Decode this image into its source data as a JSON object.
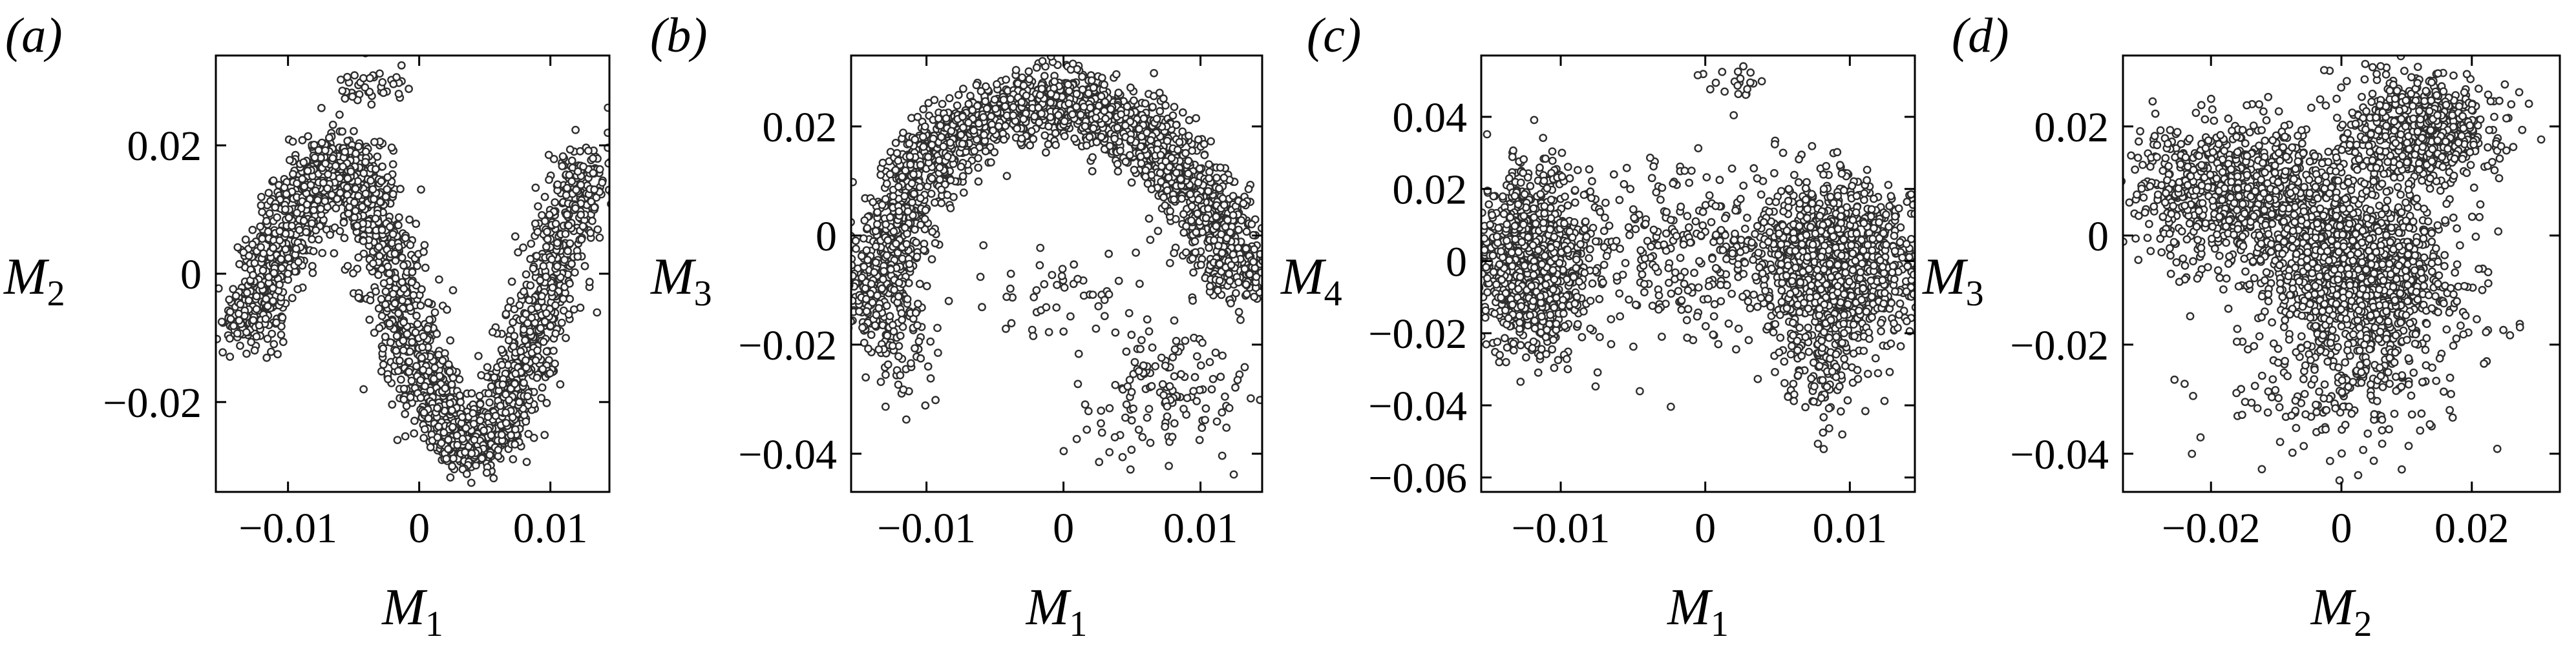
{
  "chart_data": [
    {
      "type": "scatter",
      "panel_label": "(a)",
      "x_axis": {
        "symbol": "M",
        "subscript": "1",
        "lim": [
          -0.0155,
          0.0145
        ],
        "ticks": [
          -0.01,
          0,
          0.01
        ],
        "tick_labels": [
          "−0.01",
          "0",
          "0.01"
        ]
      },
      "y_axis": {
        "symbol": "M",
        "subscript": "2",
        "lim": [
          -0.034,
          0.034
        ],
        "ticks": [
          -0.02,
          0,
          0.02
        ],
        "tick_labels": [
          "−0.02",
          "0",
          "0.02"
        ]
      },
      "grid": false,
      "point_style": {
        "marker": "open circle",
        "fill": "#ffffff",
        "edge": "#2e2e2e"
      },
      "structure": {
        "description_of_distribution": "S-shaped curve",
        "curve_x": [
          -0.0135,
          -0.012,
          -0.0105,
          -0.009,
          -0.0075,
          -0.006,
          -0.0045,
          -0.003,
          -0.0015,
          0,
          0.0015,
          0.003,
          0.0045,
          0.006,
          0.0075,
          0.009,
          0.0105,
          0.012,
          0.0128
        ],
        "curve_y": [
          -0.009,
          -0.003,
          0.004,
          0.011,
          0.016,
          0.018,
          0.014,
          0.006,
          -0.004,
          -0.014,
          -0.021,
          -0.026,
          -0.027,
          -0.024,
          -0.017,
          -0.008,
          0.002,
          0.012,
          0.018
        ],
        "spread": 0.004,
        "n_points": 2600,
        "extra_clusters": [
          {
            "cx": -0.004,
            "cy": 0.029,
            "sx": 0.0015,
            "sy": 0.0015,
            "n": 40
          }
        ]
      }
    },
    {
      "type": "scatter",
      "panel_label": "(b)",
      "x_axis": {
        "symbol": "M",
        "subscript": "1",
        "lim": [
          -0.0155,
          0.0145
        ],
        "ticks": [
          -0.01,
          0,
          0.01
        ],
        "tick_labels": [
          "−0.01",
          "0",
          "0.01"
        ]
      },
      "y_axis": {
        "symbol": "M",
        "subscript": "3",
        "lim": [
          -0.047,
          0.033
        ],
        "ticks": [
          -0.04,
          -0.02,
          0,
          0.02
        ],
        "tick_labels": [
          "−0.04",
          "−0.02",
          "0",
          "0.02"
        ]
      },
      "grid": false,
      "point_style": {
        "marker": "open circle",
        "fill": "#ffffff",
        "edge": "#2e2e2e"
      },
      "structure": {
        "description_of_distribution": "inverted-U arch",
        "curve_x": [
          -0.014,
          -0.0133,
          -0.012,
          -0.01,
          -0.0075,
          -0.005,
          -0.0025,
          0,
          0.0025,
          0.005,
          0.0075,
          0.01,
          0.0118,
          0.013
        ],
        "curve_y": [
          -0.015,
          -0.006,
          0.004,
          0.013,
          0.019,
          0.022,
          0.024,
          0.025,
          0.023,
          0.02,
          0.015,
          0.007,
          -0.001,
          -0.009
        ],
        "spread": 0.0045,
        "n_points": 2500,
        "extra_clusters": [
          {
            "cx": -0.012,
            "cy": -0.022,
            "sx": 0.0015,
            "sy": 0.005,
            "n": 60
          },
          {
            "cx": 0.007,
            "cy": -0.028,
            "sx": 0.003,
            "sy": 0.006,
            "n": 140
          },
          {
            "cx": 0.0,
            "cy": -0.01,
            "sx": 0.004,
            "sy": 0.004,
            "n": 50
          }
        ]
      }
    },
    {
      "type": "scatter",
      "panel_label": "(c)",
      "x_axis": {
        "symbol": "M",
        "subscript": "1",
        "lim": [
          -0.0155,
          0.0145
        ],
        "ticks": [
          -0.01,
          0,
          0.01
        ],
        "tick_labels": [
          "−0.01",
          "0",
          "0.01"
        ]
      },
      "y_axis": {
        "symbol": "M",
        "subscript": "4",
        "lim": [
          -0.064,
          0.057
        ],
        "ticks": [
          -0.06,
          -0.04,
          -0.02,
          0,
          0.02,
          0.04
        ],
        "tick_labels": [
          "−0.06",
          "−0.04",
          "−0.02",
          "0",
          "0.02",
          "0.04"
        ]
      },
      "grid": false,
      "point_style": {
        "marker": "open circle",
        "fill": "#ffffff",
        "edge": "#2e2e2e"
      },
      "structure": {
        "description_of_distribution": "two dense side clusters joined by sparse bridge",
        "clusters": [
          {
            "cx": -0.012,
            "cy": 0.0,
            "sx": 0.0018,
            "sy": 0.012,
            "n": 1000
          },
          {
            "cx": 0.009,
            "cy": 0.0,
            "sx": 0.0028,
            "sy": 0.011,
            "n": 1200
          },
          {
            "cx": 0.008,
            "cy": -0.03,
            "sx": 0.0015,
            "sy": 0.009,
            "n": 120
          },
          {
            "cx": -0.002,
            "cy": 0.002,
            "sx": 0.005,
            "sy": 0.014,
            "n": 320
          },
          {
            "cx": 0.002,
            "cy": 0.05,
            "sx": 0.0012,
            "sy": 0.002,
            "n": 20
          }
        ]
      }
    },
    {
      "type": "scatter",
      "panel_label": "(d)",
      "x_axis": {
        "symbol": "M",
        "subscript": "2",
        "lim": [
          -0.0335,
          0.0335
        ],
        "ticks": [
          -0.02,
          0,
          0.02
        ],
        "tick_labels": [
          "−0.02",
          "0",
          "0.02"
        ]
      },
      "y_axis": {
        "symbol": "M",
        "subscript": "3",
        "lim": [
          -0.047,
          0.033
        ],
        "ticks": [
          -0.04,
          -0.02,
          0,
          0.02
        ],
        "tick_labels": [
          "−0.04",
          "−0.02",
          "0",
          "0.02"
        ]
      },
      "grid": false,
      "point_style": {
        "marker": "open circle",
        "fill": "#ffffff",
        "edge": "#2e2e2e"
      },
      "structure": {
        "description_of_distribution": "butterfly-shaped cloud",
        "clusters": [
          {
            "cx": -0.017,
            "cy": 0.009,
            "sx": 0.007,
            "sy": 0.006,
            "n": 700
          },
          {
            "cx": 0.012,
            "cy": 0.019,
            "sx": 0.006,
            "sy": 0.005,
            "n": 650
          },
          {
            "cx": -0.002,
            "cy": 0.0,
            "sx": 0.008,
            "sy": 0.007,
            "n": 700
          },
          {
            "cx": 0.005,
            "cy": -0.01,
            "sx": 0.007,
            "sy": 0.006,
            "n": 700
          },
          {
            "cx": 0.0,
            "cy": -0.028,
            "sx": 0.009,
            "sy": 0.006,
            "n": 220
          }
        ]
      }
    }
  ]
}
